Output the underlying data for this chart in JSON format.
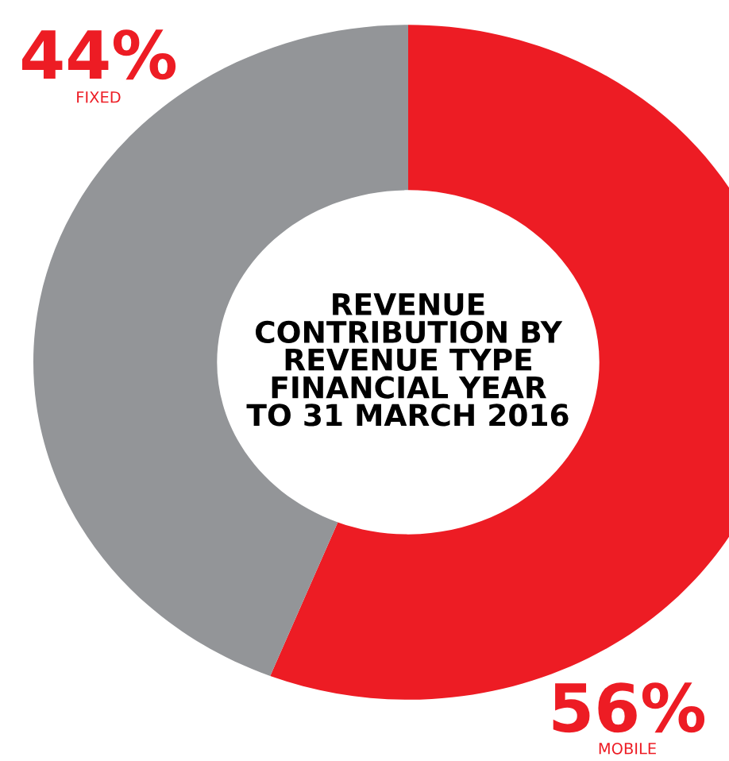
{
  "chart_data": {
    "type": "donut",
    "title": "REVENUE\nCONTRIBUTION BY\nREVENUE TYPE\nFINANCIAL YEAR\nTO 31 MARCH 2016",
    "categories": [
      "MOBILE",
      "FIXED"
    ],
    "values": [
      56,
      44
    ],
    "colors": [
      "#ed1c24",
      "#939598"
    ],
    "value_labels": [
      "56%",
      "44%"
    ],
    "legend": false
  }
}
